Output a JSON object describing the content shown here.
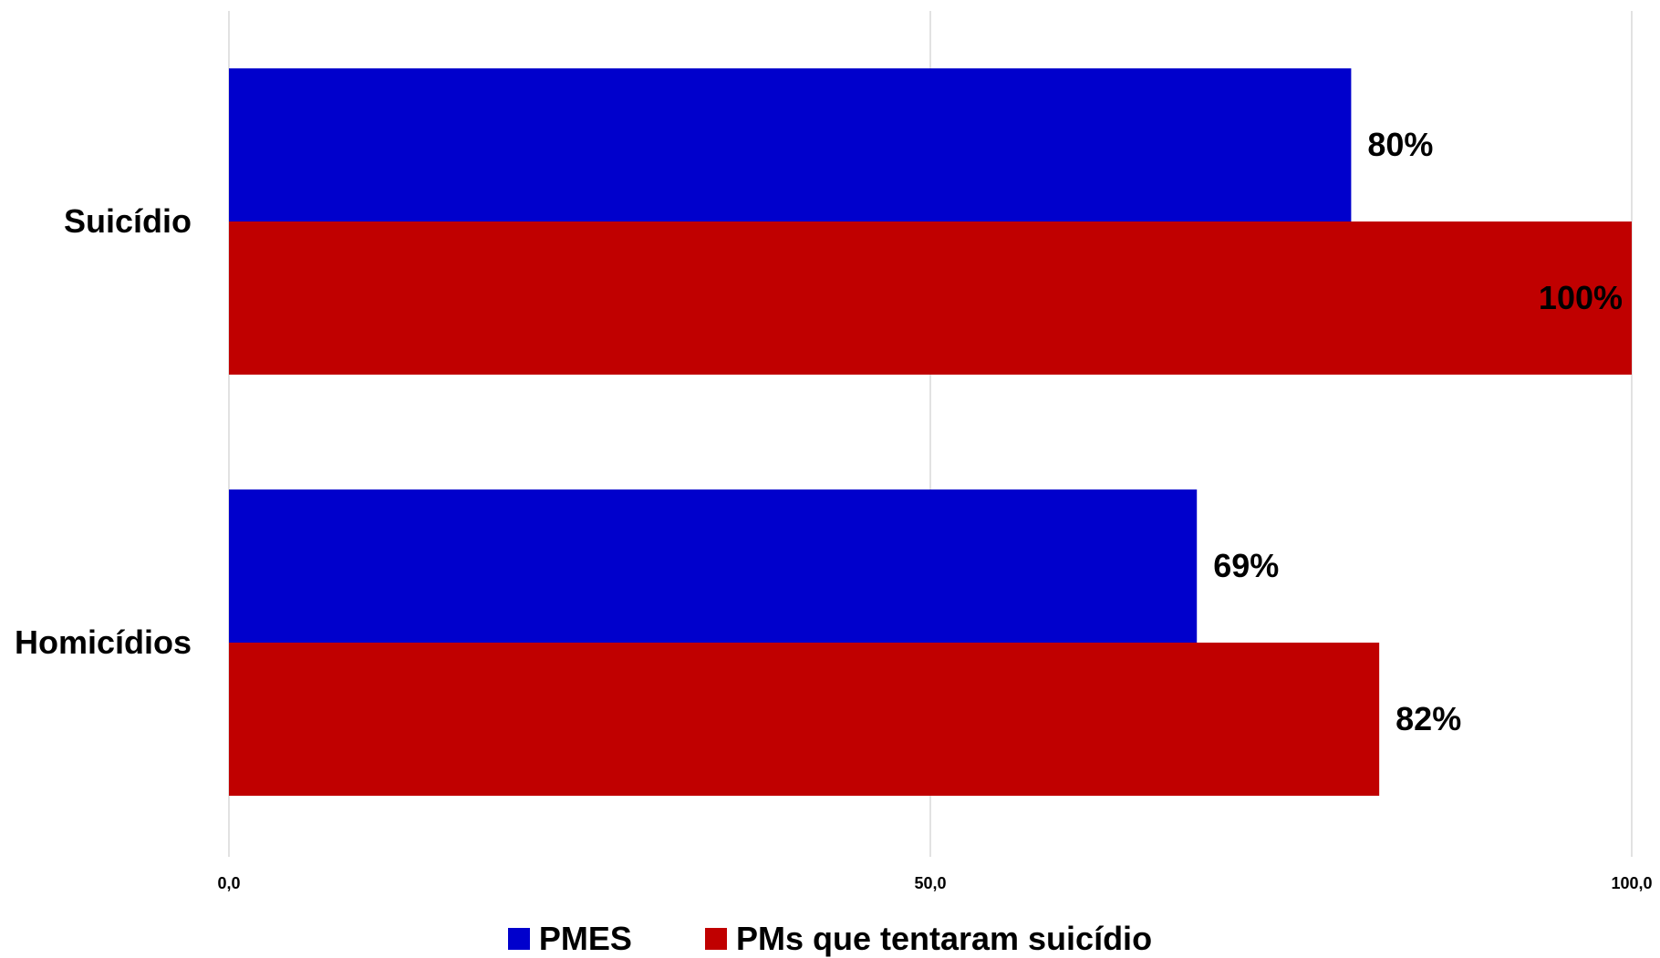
{
  "chart_data": {
    "type": "bar",
    "orientation": "horizontal",
    "categories": [
      "Suicídio",
      "Homicídios"
    ],
    "series": [
      {
        "name": "PMES",
        "color": "#0000cc",
        "values": [
          80,
          69
        ],
        "labels": [
          "80%",
          "69%"
        ]
      },
      {
        "name": "PMs que tentaram suicídio",
        "color": "#c00000",
        "values": [
          100,
          82
        ],
        "labels": [
          "100%",
          "82%"
        ]
      }
    ],
    "xlim": [
      0,
      100
    ],
    "xticks": [
      0,
      50,
      100
    ],
    "xtick_labels": [
      "0,0",
      "50,0",
      "100,0"
    ],
    "grid": "vertical",
    "legend_position": "bottom",
    "title": "",
    "xlabel": "",
    "ylabel": ""
  }
}
